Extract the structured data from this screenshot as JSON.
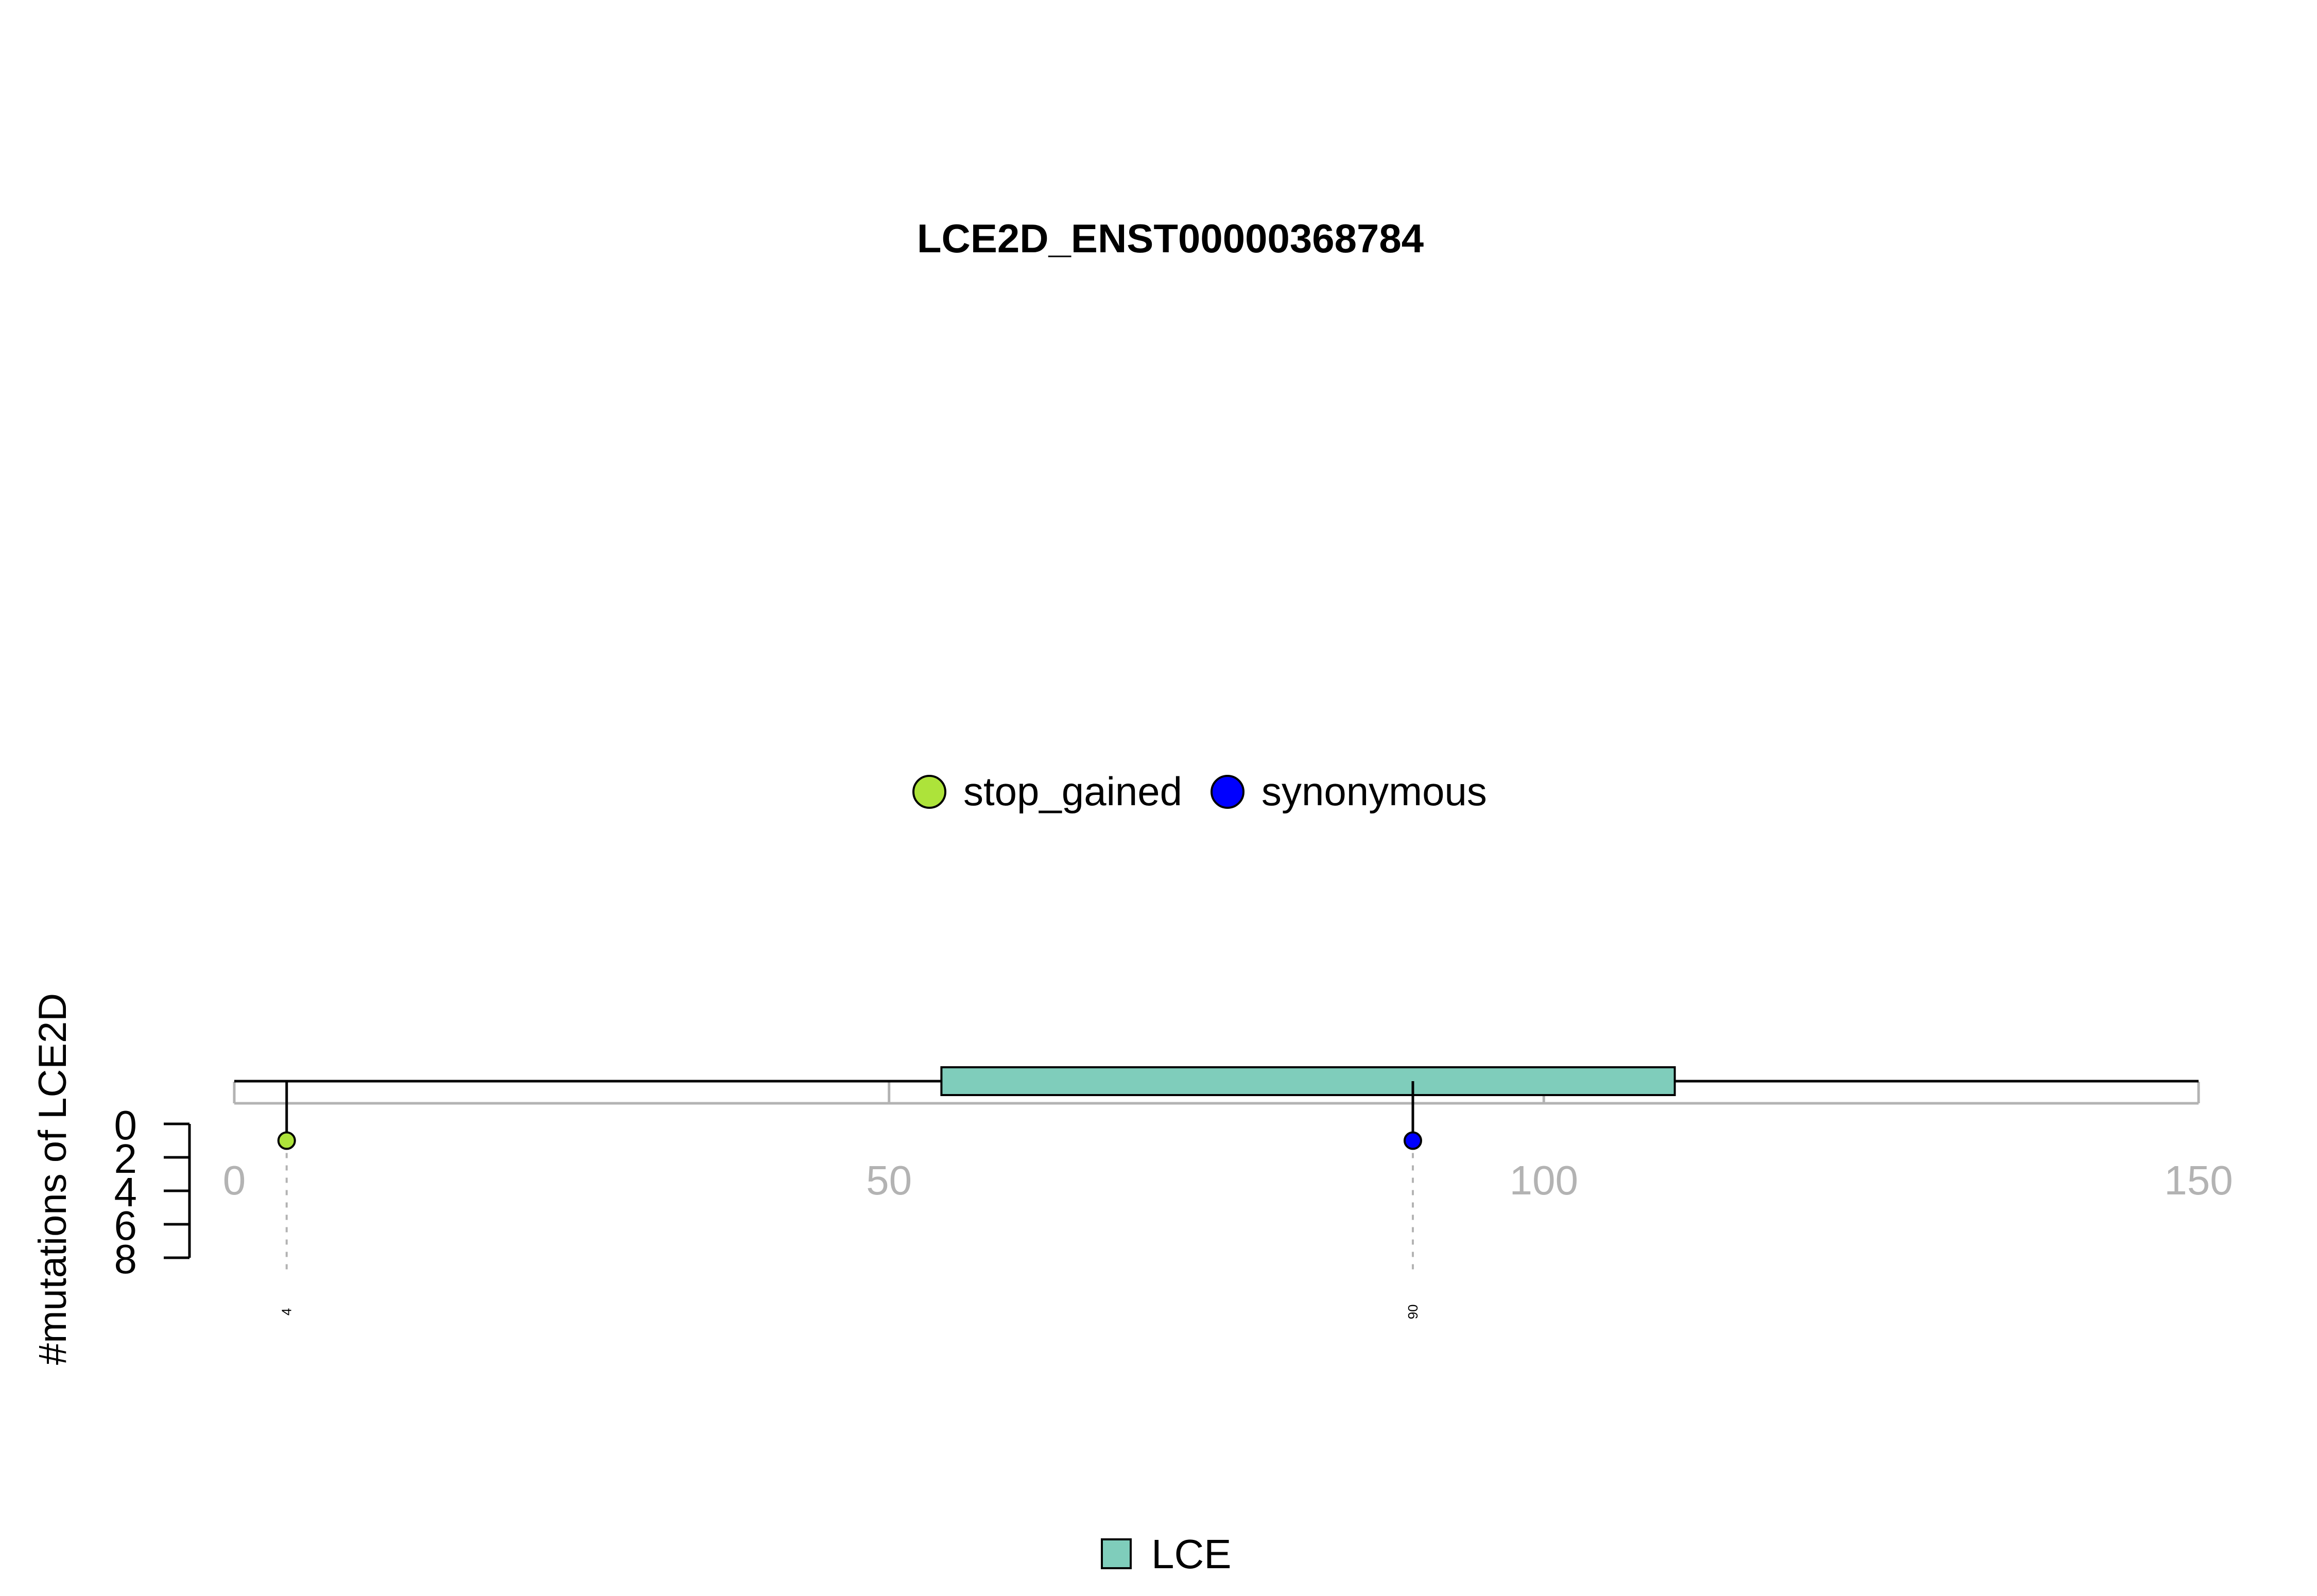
{
  "chart_data": {
    "type": "lollipop",
    "title": "LCE2D_ENST00000368784",
    "ylabel": "#mutations of LCE2D",
    "xlim": [
      0,
      150
    ],
    "x_ticks": [
      0,
      50,
      100,
      150
    ],
    "ylim": [
      0,
      8
    ],
    "y_ticks": [
      0,
      2,
      4,
      6,
      8
    ],
    "mutation_legend": [
      {
        "name": "stop_gained",
        "color": "#ADE33A"
      },
      {
        "name": "synonymous",
        "color": "#0000FF"
      }
    ],
    "mutations": [
      {
        "position": 4,
        "count": 1,
        "type": "stop_gained",
        "color": "#ADE33A",
        "label": "4"
      },
      {
        "position": 90,
        "count": 1,
        "type": "synonymous",
        "color": "#0000FF",
        "label": "90"
      }
    ],
    "domains": [
      {
        "name": "LCE",
        "start": 54,
        "end": 110,
        "color": "#7FCDBB"
      }
    ],
    "domain_legend": [
      {
        "name": "LCE",
        "color": "#7FCDBB"
      }
    ],
    "protein_length": 150
  }
}
